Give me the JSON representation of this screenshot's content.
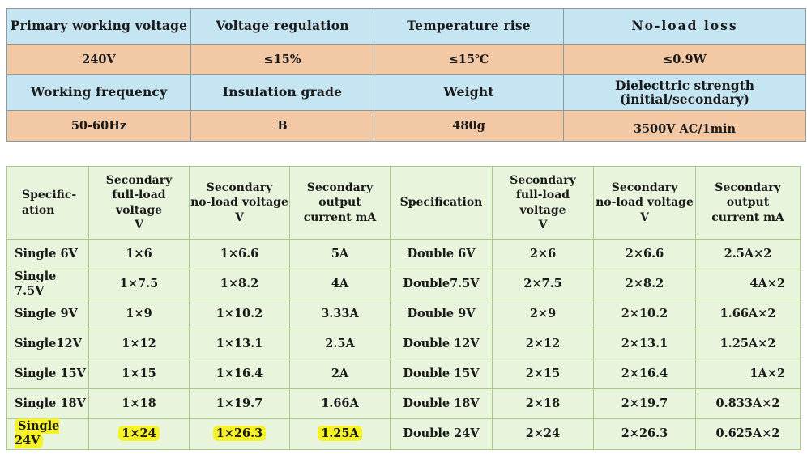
{
  "specs_table": {
    "rows": [
      [
        "Primary working voltage",
        "Voltage regulation",
        "Temperature rise",
        "No-load loss"
      ],
      [
        "240V",
        "≤15%",
        "≤15℃",
        "≤0.9W"
      ],
      [
        "Working frequency",
        "Insulation grade",
        "Weight",
        "Dielecttric strength\n(initial/secondary)"
      ],
      [
        "50-60Hz",
        "B",
        "480g",
        "3500V AC/1min"
      ]
    ],
    "header_color": "#c6e5f3",
    "value_color": "#f3c8a4"
  },
  "output_table": {
    "headers": [
      "Specific-\nation",
      "Secondary\nfull-load voltage\nV",
      "Secondary\nno-load voltage\nV",
      "Secondary\noutput\ncurrent mA",
      "Specification",
      "Secondary\nfull-load voltage\nV",
      "Secondary\nno-load voltage\nV",
      "Secondary\noutput\ncurrent mA"
    ],
    "rows": [
      [
        "Single 6V",
        "1×6",
        "1×6.6",
        "5A",
        "Double 6V",
        "2×6",
        "2×6.6",
        "2.5A×2"
      ],
      [
        "Single 7.5V",
        "1×7.5",
        "1×8.2",
        "4A",
        "Double7.5V",
        "2×7.5",
        "2×8.2",
        "4A×2"
      ],
      [
        "Single 9V",
        "1×9",
        "1×10.2",
        "3.33A",
        "Double 9V",
        "2×9",
        "2×10.2",
        "1.66A×2"
      ],
      [
        "Single12V",
        "1×12",
        "1×13.1",
        "2.5A",
        "Double 12V",
        "2×12",
        "2×13.1",
        "1.25A×2"
      ],
      [
        "Single 15V",
        "1×15",
        "1×16.4",
        "2A",
        "Double 15V",
        "2×15",
        "2×16.4",
        "1A×2"
      ],
      [
        "Single 18V",
        "1×18",
        "1×19.7",
        "1.66A",
        "Double 18V",
        "2×18",
        "2×19.7",
        "0.833A×2"
      ],
      [
        "Single 24V",
        "1×24",
        "1×26.3",
        "1.25A",
        "Double 24V",
        "2×24",
        "2×26.3",
        "0.625A×2"
      ]
    ],
    "background_color": "#e9f4dd",
    "highlight_color": "#f6f22a"
  }
}
